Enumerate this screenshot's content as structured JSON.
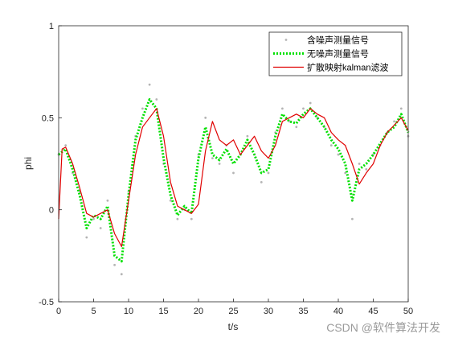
{
  "chart_data": {
    "type": "line",
    "xlabel": "t/s",
    "ylabel": "phi",
    "xlim": [
      0,
      50
    ],
    "ylim": [
      -0.5,
      1
    ],
    "xticks": [
      0,
      5,
      10,
      15,
      20,
      25,
      30,
      35,
      40,
      45,
      50
    ],
    "yticks": [
      -0.5,
      0,
      0.5,
      1
    ],
    "xtick_labels": [
      "0",
      "5",
      "10",
      "15",
      "20",
      "25",
      "30",
      "35",
      "40",
      "45",
      "50"
    ],
    "ytick_labels": [
      "-0.5",
      "0",
      "0.5",
      "1"
    ],
    "grid": false,
    "legend_position": "top-right",
    "series": [
      {
        "name": "含噪声测量信号",
        "style": "scatter",
        "color": "#b4b4b4",
        "x": [
          0,
          1,
          2,
          3,
          4,
          5,
          6,
          7,
          8,
          9,
          10,
          11,
          12,
          13,
          14,
          15,
          16,
          17,
          18,
          19,
          20,
          21,
          22,
          23,
          24,
          25,
          26,
          27,
          28,
          29,
          30,
          31,
          32,
          33,
          34,
          35,
          36,
          37,
          38,
          39,
          40,
          41,
          42,
          43,
          44,
          45,
          46,
          47,
          48,
          49,
          50
        ],
        "y": [
          0.3,
          0.35,
          0.2,
          0.1,
          -0.15,
          -0.05,
          -0.1,
          0.05,
          -0.3,
          -0.35,
          0.1,
          0.4,
          0.55,
          0.68,
          0.6,
          0.25,
          0.05,
          -0.05,
          0.0,
          -0.05,
          0.3,
          0.5,
          0.28,
          0.25,
          0.35,
          0.2,
          0.3,
          0.4,
          0.3,
          0.15,
          0.2,
          0.42,
          0.55,
          0.48,
          0.45,
          0.55,
          0.58,
          0.5,
          0.45,
          0.35,
          0.3,
          0.2,
          -0.05,
          0.25,
          0.22,
          0.3,
          0.35,
          0.42,
          0.48,
          0.55,
          0.4
        ]
      },
      {
        "name": "无噪声测量信号",
        "style": "dotted",
        "color": "#00e000",
        "x": [
          0,
          1,
          2,
          3,
          4,
          5,
          6,
          7,
          8,
          9,
          10,
          11,
          12,
          13,
          14,
          15,
          16,
          17,
          18,
          19,
          20,
          21,
          22,
          23,
          24,
          25,
          26,
          27,
          28,
          29,
          30,
          31,
          32,
          33,
          34,
          35,
          36,
          37,
          38,
          39,
          40,
          41,
          42,
          43,
          44,
          45,
          46,
          47,
          48,
          49,
          50
        ],
        "y": [
          0.3,
          0.33,
          0.22,
          0.08,
          -0.1,
          -0.03,
          -0.05,
          0.02,
          -0.25,
          -0.28,
          0.08,
          0.38,
          0.5,
          0.6,
          0.55,
          0.28,
          0.08,
          -0.03,
          0.02,
          -0.02,
          0.28,
          0.45,
          0.3,
          0.27,
          0.33,
          0.25,
          0.3,
          0.38,
          0.3,
          0.2,
          0.22,
          0.4,
          0.52,
          0.48,
          0.47,
          0.52,
          0.55,
          0.5,
          0.45,
          0.38,
          0.33,
          0.25,
          0.05,
          0.22,
          0.25,
          0.3,
          0.36,
          0.42,
          0.45,
          0.52,
          0.42
        ]
      },
      {
        "name": "扩散映射kalman滤波",
        "style": "solid",
        "color": "#e00000",
        "x": [
          0,
          0.5,
          1,
          2,
          3,
          4,
          5,
          6,
          7,
          8,
          9,
          10,
          11,
          12,
          13,
          14,
          15,
          16,
          17,
          18,
          19,
          20,
          21,
          22,
          23,
          24,
          25,
          26,
          27,
          28,
          29,
          30,
          31,
          32,
          33,
          34,
          35,
          36,
          37,
          38,
          39,
          40,
          41,
          42,
          43,
          44,
          45,
          46,
          47,
          48,
          49,
          50
        ],
        "y": [
          -0.05,
          0.33,
          0.34,
          0.25,
          0.12,
          -0.02,
          -0.04,
          -0.02,
          0.0,
          -0.13,
          -0.2,
          0.05,
          0.3,
          0.45,
          0.5,
          0.55,
          0.4,
          0.15,
          0.02,
          0.0,
          -0.02,
          0.03,
          0.32,
          0.48,
          0.38,
          0.35,
          0.38,
          0.3,
          0.35,
          0.4,
          0.32,
          0.28,
          0.35,
          0.48,
          0.5,
          0.52,
          0.5,
          0.55,
          0.52,
          0.5,
          0.42,
          0.38,
          0.35,
          0.25,
          0.14,
          0.2,
          0.25,
          0.35,
          0.42,
          0.46,
          0.5,
          0.43
        ]
      }
    ]
  },
  "watermark": "CSDN @软件算法开发"
}
